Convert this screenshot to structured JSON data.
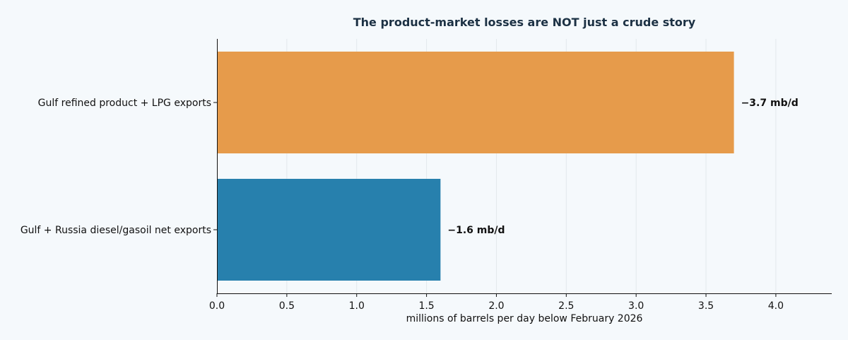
{
  "chart_data": {
    "type": "bar",
    "orientation": "horizontal",
    "title": "The product-market losses are NOT just a crude story",
    "xlabel": "millions of barrels per day below February 2026",
    "ylabel": "",
    "xlim": [
      0,
      4.4
    ],
    "xticks": [
      0.0,
      0.5,
      1.0,
      1.5,
      2.0,
      2.5,
      3.0,
      3.5,
      4.0
    ],
    "xtick_labels": [
      "0.0",
      "0.5",
      "1.0",
      "1.5",
      "2.0",
      "2.5",
      "3.0",
      "3.5",
      "4.0"
    ],
    "grid": "vertical",
    "categories": [
      "Gulf refined product + LPG exports",
      "Gulf + Russia diesel/gasoil net exports"
    ],
    "values": [
      3.7,
      1.6
    ],
    "data_labels": [
      "−3.7 mb/d",
      "−1.6 mb/d"
    ],
    "colors": [
      "#e69b4b",
      "#2780ad"
    ]
  }
}
